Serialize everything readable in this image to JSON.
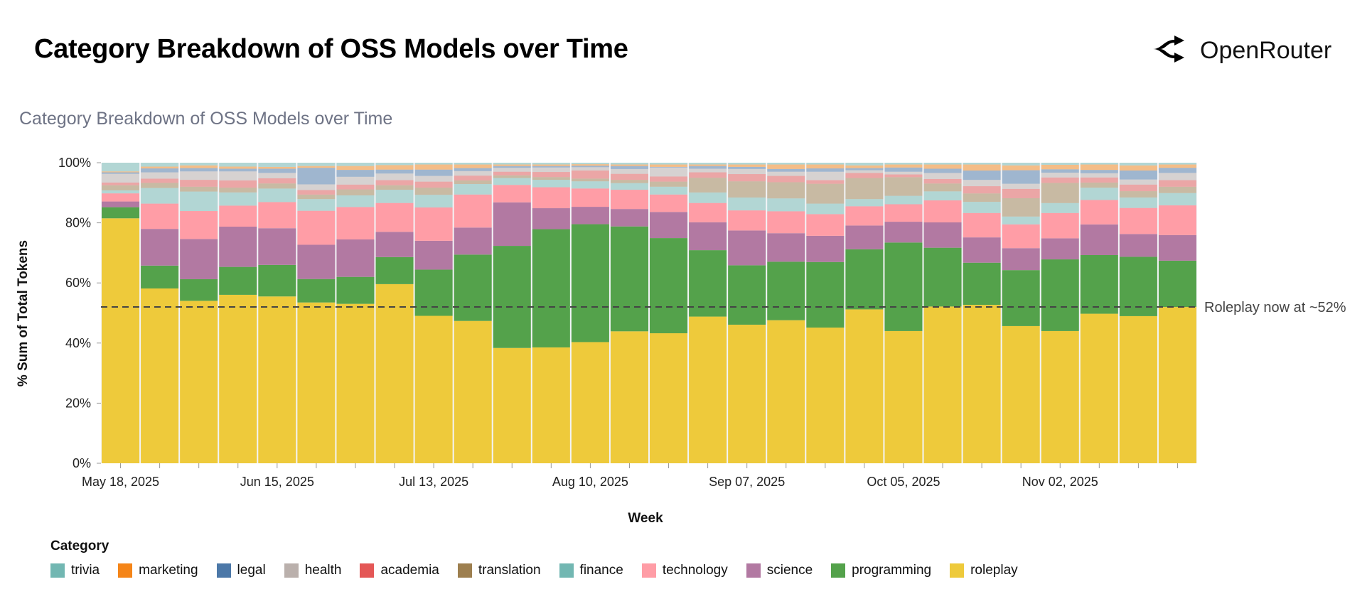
{
  "header": {
    "title": "Category Breakdown of OSS Models over Time",
    "brand": "OpenRouter",
    "brand_icon": "openrouter-logo-icon"
  },
  "chart_data": {
    "type": "bar",
    "stacked": true,
    "normalized": true,
    "title": "Category Breakdown of OSS Models over Time",
    "xlabel": "Week",
    "ylabel": "% Sum of Total Tokens",
    "ylim": [
      0,
      100
    ],
    "yticks": [
      "0%",
      "20%",
      "40%",
      "60%",
      "80%",
      "100%"
    ],
    "xtick_labels": [
      "May 18, 2025",
      "Jun 15, 2025",
      "Jul 13, 2025",
      "Aug 10, 2025",
      "Sep 07, 2025",
      "Oct 05, 2025",
      "Nov 02, 2025"
    ],
    "grid": true,
    "legend_title": "Category",
    "legend_placement": "bottom",
    "reference_line": {
      "y": 52,
      "style": "dashed",
      "label": "Roleplay now at ~52%"
    },
    "categories": [
      "2025-05-18",
      "2025-05-25",
      "2025-06-01",
      "2025-06-08",
      "2025-06-15",
      "2025-06-22",
      "2025-06-29",
      "2025-07-06",
      "2025-07-13",
      "2025-07-20",
      "2025-07-27",
      "2025-08-03",
      "2025-08-10",
      "2025-08-17",
      "2025-08-24",
      "2025-08-31",
      "2025-09-07",
      "2025-09-14",
      "2025-09-21",
      "2025-09-28",
      "2025-10-05",
      "2025-10-12",
      "2025-10-19",
      "2025-10-26",
      "2025-11-02",
      "2025-11-09",
      "2025-11-16",
      "2025-11-23"
    ],
    "series": [
      {
        "name": "roleplay",
        "color": "#eeca3b",
        "values": [
          81.5,
          58.1,
          54.1,
          56.1,
          55.5,
          53.5,
          53.2,
          59.6,
          49.1,
          47.4,
          38.4,
          38.7,
          40.4,
          43.9,
          43.3,
          48.8,
          46.2,
          47.7,
          45.1,
          51.2,
          43.9,
          52.0,
          52.6,
          45.6,
          43.9,
          49.7,
          49.1,
          52.0
        ]
      },
      {
        "name": "programming",
        "color": "#54a24b",
        "values": [
          3.7,
          7.6,
          7.2,
          9.3,
          10.5,
          7.8,
          9.0,
          9.0,
          15.4,
          22.1,
          34.0,
          39.5,
          39.3,
          34.9,
          31.7,
          22.1,
          19.8,
          19.5,
          21.8,
          20.0,
          29.4,
          19.5,
          14.0,
          18.6,
          23.8,
          19.5,
          19.8,
          15.4
        ]
      },
      {
        "name": "science",
        "color": "#b279a2",
        "values": [
          1.9,
          12.2,
          13.4,
          13.4,
          12.2,
          11.4,
          12.5,
          8.4,
          9.6,
          9.0,
          14.5,
          7.0,
          5.8,
          5.8,
          8.7,
          9.3,
          11.6,
          9.5,
          8.7,
          7.9,
          6.9,
          8.4,
          8.4,
          7.3,
          7.0,
          10.2,
          7.6,
          8.5
        ]
      },
      {
        "name": "technology",
        "color": "#ff9da6",
        "values": [
          2.7,
          8.4,
          9.3,
          7.0,
          8.7,
          11.3,
          10.8,
          9.6,
          11.1,
          11.0,
          5.8,
          7.0,
          6.1,
          6.4,
          5.8,
          6.4,
          6.7,
          7.3,
          7.2,
          6.4,
          5.8,
          7.3,
          8.1,
          7.9,
          8.4,
          8.1,
          8.7,
          9.9
        ]
      },
      {
        "name": "finance",
        "color": "#72b7b2",
        "values": [
          1.0,
          5.2,
          6.5,
          4.4,
          4.5,
          3.9,
          3.9,
          4.4,
          4.2,
          3.5,
          2.3,
          2.5,
          2.4,
          2.2,
          2.6,
          3.5,
          4.3,
          4.3,
          3.5,
          2.4,
          2.8,
          3.0,
          3.7,
          2.6,
          3.3,
          4.1,
          3.5,
          4.1
        ]
      },
      {
        "name": "translation",
        "color": "#9d7f4f",
        "values": [
          1.7,
          1.7,
          1.6,
          1.6,
          1.7,
          1.5,
          2.0,
          1.5,
          2.4,
          1.2,
          0.9,
          0.9,
          0.9,
          1.1,
          1.7,
          4.9,
          5.4,
          5.4,
          6.6,
          7.0,
          6.2,
          2.6,
          2.8,
          6.1,
          6.7,
          1.7,
          2.1,
          2.1
        ]
      },
      {
        "name": "academia",
        "color": "#e45756",
        "values": [
          0.9,
          1.4,
          2.3,
          2.4,
          1.7,
          1.5,
          1.6,
          1.7,
          2.0,
          1.6,
          1.2,
          1.7,
          2.7,
          2.0,
          1.7,
          1.8,
          2.4,
          2.1,
          1.2,
          1.7,
          0.9,
          1.5,
          2.4,
          3.1,
          1.8,
          1.7,
          2.2,
          2.2
        ]
      },
      {
        "name": "health",
        "color": "#bab0ac",
        "values": [
          2.9,
          2.1,
          2.8,
          3.0,
          1.8,
          1.9,
          2.6,
          2.2,
          1.9,
          1.5,
          1.3,
          1.5,
          1.1,
          1.6,
          3.0,
          1.2,
          1.7,
          1.4,
          2.8,
          0.9,
          0.9,
          2.0,
          2.1,
          1.7,
          1.6,
          1.4,
          1.7,
          2.4
        ]
      },
      {
        "name": "legal",
        "color": "#4c78a8",
        "values": [
          0.5,
          1.3,
          1.1,
          0.9,
          1.4,
          5.5,
          2.3,
          1.3,
          2.1,
          1.0,
          0.6,
          0.5,
          0.5,
          1.0,
          0.2,
          0.9,
          0.7,
          0.9,
          1.1,
          0.7,
          1.4,
          1.4,
          3.1,
          4.5,
          1.1,
          1.1,
          3.0,
          1.7
        ]
      },
      {
        "name": "marketing",
        "color": "#f58518",
        "values": [
          0.3,
          0.6,
          0.9,
          0.7,
          0.6,
          0.6,
          1.3,
          1.5,
          1.7,
          1.2,
          0.5,
          0.5,
          0.5,
          0.5,
          0.8,
          0.5,
          0.8,
          1.5,
          1.3,
          0.9,
          1.0,
          1.4,
          2.0,
          1.6,
          1.5,
          1.8,
          1.7,
          1.1
        ]
      },
      {
        "name": "trivia",
        "color": "#72b7b2",
        "values": [
          2.9,
          1.3,
          0.9,
          1.3,
          1.4,
          1.1,
          1.1,
          0.8,
          0.6,
          0.6,
          0.6,
          0.6,
          0.5,
          0.6,
          0.6,
          0.6,
          0.6,
          0.6,
          0.6,
          0.9,
          0.6,
          0.6,
          0.6,
          0.9,
          0.7,
          0.6,
          0.9,
          0.6
        ]
      }
    ],
    "faded_series": [
      "finance",
      "translation",
      "academia",
      "health",
      "legal",
      "marketing",
      "trivia"
    ],
    "legend_order": [
      "trivia",
      "marketing",
      "legal",
      "health",
      "academia",
      "translation",
      "finance",
      "technology",
      "science",
      "programming",
      "roleplay"
    ]
  }
}
